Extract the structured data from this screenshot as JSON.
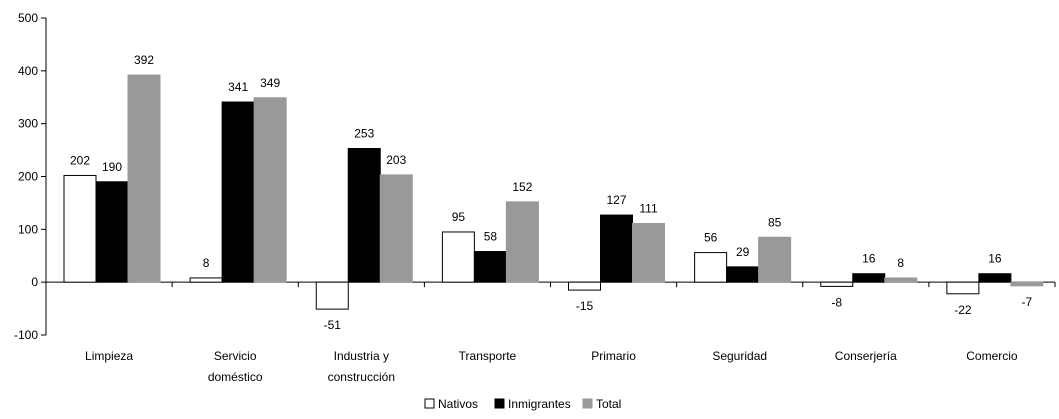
{
  "chart_data": {
    "type": "bar",
    "title": "",
    "xlabel": "",
    "ylabel": "",
    "ylim": [
      -100,
      500
    ],
    "yticks": [
      -100,
      0,
      100,
      200,
      300,
      400,
      500
    ],
    "categories": [
      [
        "Limpieza"
      ],
      [
        "Servicio",
        "doméstico"
      ],
      [
        "Industria y",
        "construcción"
      ],
      [
        "Transporte"
      ],
      [
        "Primario"
      ],
      [
        "Seguridad"
      ],
      [
        "Conserjería"
      ],
      [
        "Comercio"
      ]
    ],
    "series": [
      {
        "name": "Nativos",
        "values": [
          202,
          8,
          -51,
          95,
          -15,
          56,
          -8,
          -22
        ],
        "color": "#ffffff",
        "stroke": "#000000"
      },
      {
        "name": "Inmigrantes",
        "values": [
          190,
          341,
          253,
          58,
          127,
          29,
          16,
          16
        ],
        "color": "#000000",
        "stroke": "#000000"
      },
      {
        "name": "Total",
        "values": [
          392,
          349,
          203,
          152,
          111,
          85,
          8,
          -7
        ],
        "color": "#999999",
        "stroke": "#999999"
      }
    ],
    "legend": "bottom",
    "grid": false
  }
}
